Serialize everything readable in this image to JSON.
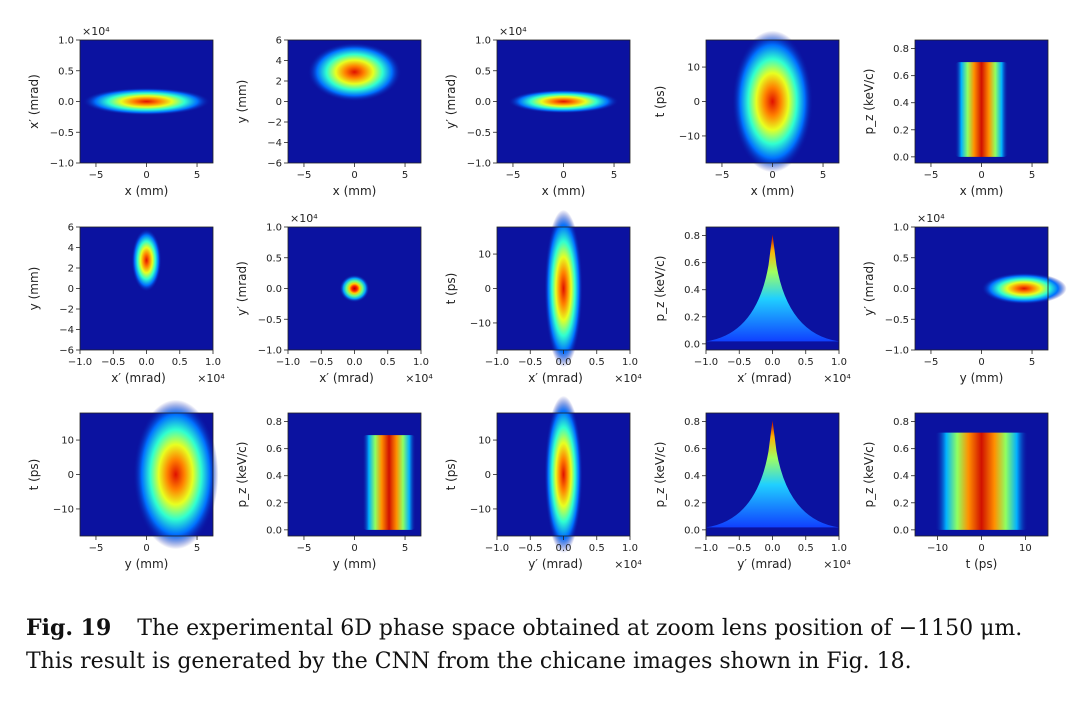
{
  "figure": {
    "panels": [
      {
        "id": "xxp",
        "row": 0,
        "col": 0,
        "xlabel": "x (mm)",
        "ylabel": "x′ (mrad)",
        "xticks": [
          "−5",
          "0",
          "5"
        ],
        "yticks": [
          "1.0",
          "0.5",
          "0.0",
          "−0.5",
          "−1.0"
        ],
        "multiplier": "×10⁴",
        "xmult": ""
      },
      {
        "id": "xy",
        "row": 0,
        "col": 1,
        "xlabel": "x (mm)",
        "ylabel": "y (mm)",
        "xticks": [
          "−5",
          "0",
          "5"
        ],
        "yticks": [
          "6",
          "4",
          "2",
          "0",
          "−2",
          "−4",
          "−6"
        ],
        "multiplier": "",
        "xmult": ""
      },
      {
        "id": "xyp",
        "row": 0,
        "col": 2,
        "xlabel": "x (mm)",
        "ylabel": "y′ (mrad)",
        "xticks": [
          "−5",
          "0",
          "5"
        ],
        "yticks": [
          "1.0",
          "0.5",
          "0.0",
          "−0.5",
          "−1.0"
        ],
        "multiplier": "×10⁴",
        "xmult": ""
      },
      {
        "id": "xt",
        "row": 0,
        "col": 3,
        "xlabel": "x (mm)",
        "ylabel": "t (ps)",
        "xticks": [
          "−5",
          "0",
          "5"
        ],
        "yticks": [
          "10",
          "0",
          "−10"
        ],
        "multiplier": "",
        "xmult": ""
      },
      {
        "id": "xpz",
        "row": 0,
        "col": 4,
        "xlabel": "x (mm)",
        "ylabel": "p_z (keV/c)",
        "xticks": [
          "−5",
          "0",
          "5"
        ],
        "yticks": [
          "0.8",
          "0.6",
          "0.4",
          "0.2",
          "0.0"
        ],
        "multiplier": "",
        "xmult": ""
      },
      {
        "id": "xpy",
        "row": 1,
        "col": 0,
        "xlabel": "x′ (mrad)",
        "ylabel": "y (mm)",
        "xticks": [
          "−1.0",
          "−0.5",
          "0.0",
          "0.5",
          "1.0"
        ],
        "yticks": [
          "6",
          "4",
          "2",
          "0",
          "−2",
          "−4",
          "−6"
        ],
        "multiplier": "",
        "xmult": "×10⁴"
      },
      {
        "id": "xpyp",
        "row": 1,
        "col": 1,
        "xlabel": "x′ (mrad)",
        "ylabel": "y′ (mrad)",
        "xticks": [
          "−1.0",
          "−0.5",
          "0.0",
          "0.5",
          "1.0"
        ],
        "yticks": [
          "1.0",
          "0.5",
          "0.0",
          "−0.5",
          "−1.0"
        ],
        "multiplier": "×10⁴",
        "xmult": "×10⁴"
      },
      {
        "id": "xpt",
        "row": 1,
        "col": 2,
        "xlabel": "x′ (mrad)",
        "ylabel": "t (ps)",
        "xticks": [
          "−1.0",
          "−0.5",
          "0.0",
          "0.5",
          "1.0"
        ],
        "yticks": [
          "10",
          "0",
          "−10"
        ],
        "multiplier": "",
        "xmult": "×10⁴"
      },
      {
        "id": "xppz",
        "row": 1,
        "col": 3,
        "xlabel": "x′ (mrad)",
        "ylabel": "p_z (keV/c)",
        "xticks": [
          "−1.0",
          "−0.5",
          "0.0",
          "0.5",
          "1.0"
        ],
        "yticks": [
          "0.8",
          "0.6",
          "0.4",
          "0.2",
          "0.0"
        ],
        "multiplier": "",
        "xmult": "×10⁴"
      },
      {
        "id": "yyp",
        "row": 1,
        "col": 4,
        "xlabel": "y (mm)",
        "ylabel": "y′ (mrad)",
        "xticks": [
          "−5",
          "0",
          "5"
        ],
        "yticks": [
          "1.0",
          "0.5",
          "0.0",
          "−0.5",
          "−1.0"
        ],
        "multiplier": "×10⁴",
        "xmult": ""
      },
      {
        "id": "yt",
        "row": 2,
        "col": 0,
        "xlabel": "y (mm)",
        "ylabel": "t (ps)",
        "xticks": [
          "−5",
          "0",
          "5"
        ],
        "yticks": [
          "10",
          "0",
          "−10"
        ],
        "multiplier": "",
        "xmult": ""
      },
      {
        "id": "ypz",
        "row": 2,
        "col": 1,
        "xlabel": "y (mm)",
        "ylabel": "p_z (keV/c)",
        "xticks": [
          "−5",
          "0",
          "5"
        ],
        "yticks": [
          "0.8",
          "0.6",
          "0.4",
          "0.2",
          "0.0"
        ],
        "multiplier": "",
        "xmult": ""
      },
      {
        "id": "ypt",
        "row": 2,
        "col": 2,
        "xlabel": "y′ (mrad)",
        "ylabel": "t (ps)",
        "xticks": [
          "−1.0",
          "−0.5",
          "0.0",
          "0.5",
          "1.0"
        ],
        "yticks": [
          "10",
          "0",
          "−10"
        ],
        "multiplier": "",
        "xmult": "×10⁴"
      },
      {
        "id": "yppz",
        "row": 2,
        "col": 3,
        "xlabel": "y′ (mrad)",
        "ylabel": "p_z (keV/c)",
        "xticks": [
          "−1.0",
          "−0.5",
          "0.0",
          "0.5",
          "1.0"
        ],
        "yticks": [
          "0.8",
          "0.6",
          "0.4",
          "0.2",
          "0.0"
        ],
        "multiplier": "",
        "xmult": "×10⁴"
      },
      {
        "id": "tpz",
        "row": 2,
        "col": 4,
        "xlabel": "t (ps)",
        "ylabel": "p_z (keV/c)",
        "xticks": [
          "−10",
          "0",
          "10"
        ],
        "yticks": [
          "0.8",
          "0.6",
          "0.4",
          "0.2",
          "0.0"
        ],
        "multiplier": "",
        "xmult": ""
      }
    ]
  },
  "caption": {
    "label": "Fig. 19",
    "text": "The experimental 6D phase space obtained at zoom lens position of −1150 μm. This result is generated by the CNN from the chicane images shown in Fig. 18."
  },
  "colors": {
    "background": "#0b12a0",
    "colormap": "jet"
  }
}
